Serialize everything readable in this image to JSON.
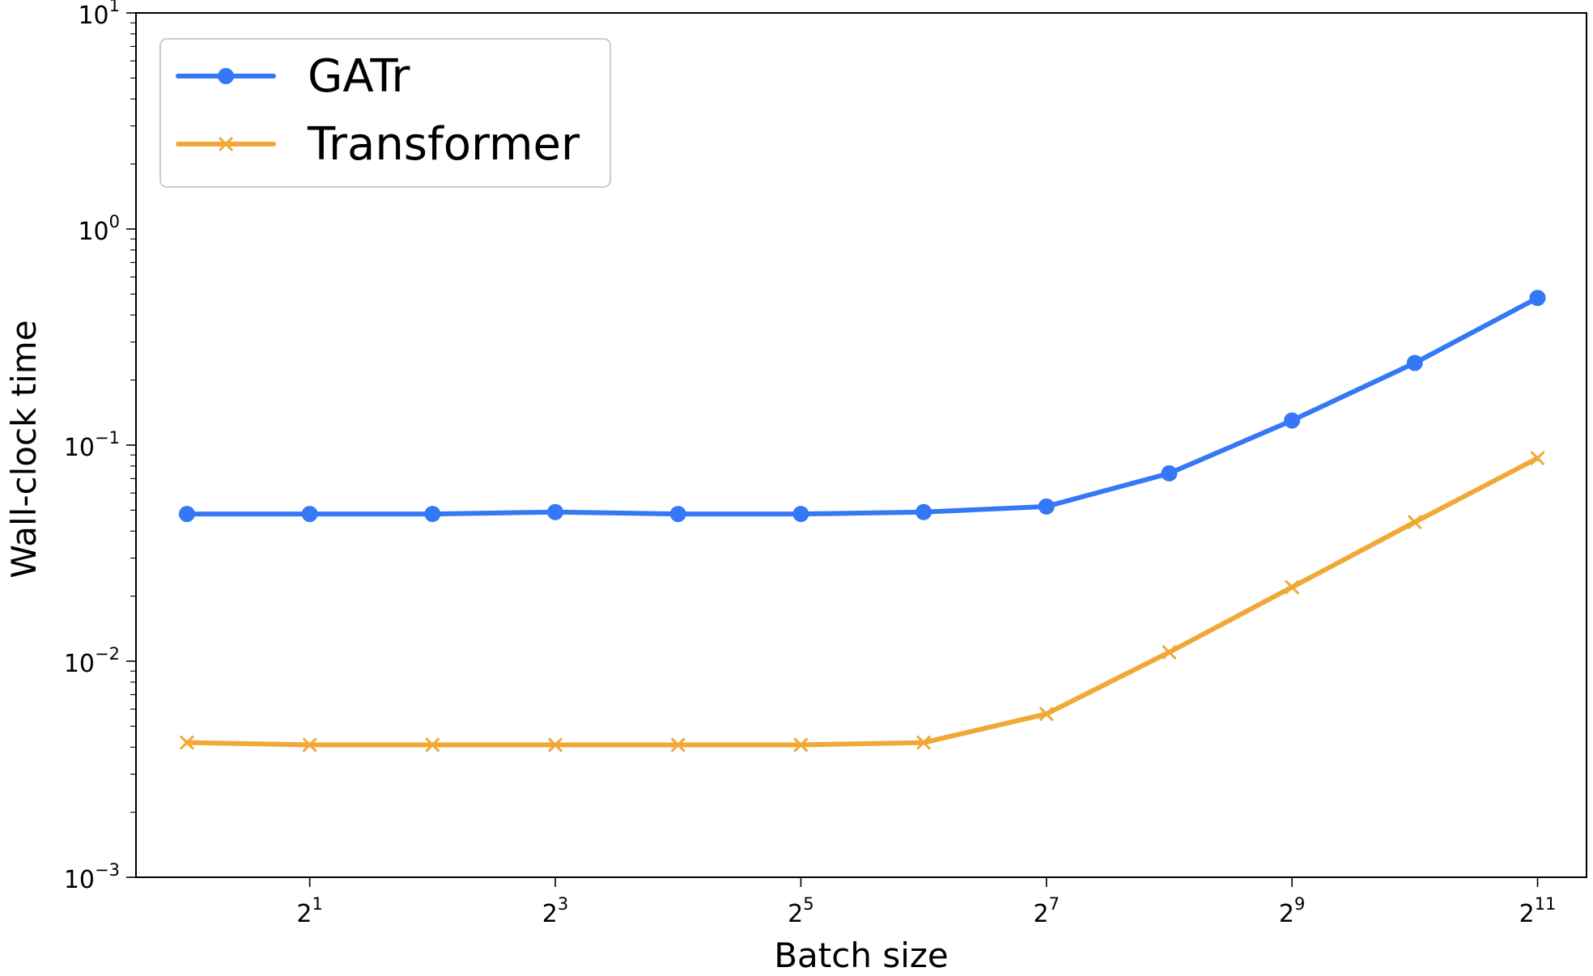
{
  "chart_data": {
    "type": "line",
    "title": "",
    "xlabel": "Batch size",
    "ylabel": "Wall-clock time",
    "x_scale": "log2",
    "y_scale": "log10",
    "x": [
      1,
      2,
      4,
      8,
      16,
      32,
      64,
      128,
      256,
      512,
      1024,
      2048
    ],
    "xlim": [
      0.75,
      2700
    ],
    "ylim": [
      0.001,
      10
    ],
    "x_ticks": [
      {
        "value": 2,
        "base": "2",
        "exp": "1"
      },
      {
        "value": 8,
        "base": "2",
        "exp": "3"
      },
      {
        "value": 32,
        "base": "2",
        "exp": "5"
      },
      {
        "value": 128,
        "base": "2",
        "exp": "7"
      },
      {
        "value": 512,
        "base": "2",
        "exp": "9"
      },
      {
        "value": 2048,
        "base": "2",
        "exp": "11"
      }
    ],
    "y_ticks": [
      {
        "value": 10,
        "base": "10",
        "exp": "1"
      },
      {
        "value": 1,
        "base": "10",
        "exp": "0"
      },
      {
        "value": 0.1,
        "base": "10",
        "exp": "−1"
      },
      {
        "value": 0.01,
        "base": "10",
        "exp": "−2"
      },
      {
        "value": 0.001,
        "base": "10",
        "exp": "−3"
      }
    ],
    "grid": false,
    "legend_position": "top-left",
    "series": [
      {
        "name": "GATr",
        "color": "#3478f6",
        "marker": "circle",
        "values": [
          0.048,
          0.048,
          0.048,
          0.049,
          0.048,
          0.048,
          0.049,
          0.052,
          0.074,
          0.13,
          0.24,
          0.48
        ]
      },
      {
        "name": "Transformer",
        "color": "#f0a836",
        "marker": "x",
        "values": [
          0.0042,
          0.0041,
          0.0041,
          0.0041,
          0.0041,
          0.0041,
          0.0042,
          0.0057,
          0.011,
          0.022,
          0.044,
          0.087
        ]
      }
    ]
  }
}
